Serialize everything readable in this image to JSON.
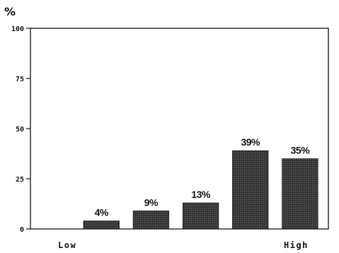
{
  "chart_data": {
    "type": "bar",
    "ylabel": "%",
    "ylim": [
      0,
      100
    ],
    "yticks": [
      0,
      25,
      50,
      75,
      100
    ],
    "categories": [
      "",
      "",
      "",
      "",
      "",
      ""
    ],
    "values": [
      0,
      4,
      9,
      13,
      39,
      35
    ],
    "data_labels": [
      "",
      "4%",
      "9%",
      "13%",
      "39%",
      "35%"
    ],
    "x_end_labels": {
      "low": "Low",
      "high": "High"
    },
    "grid": false,
    "legend": "none",
    "bar_color": "#3a3a3a"
  }
}
